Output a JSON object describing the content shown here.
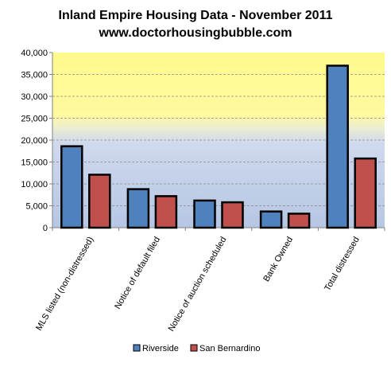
{
  "chart_data": {
    "type": "bar",
    "title": "Inland Empire Housing Data - November 2011",
    "subtitle": "www.doctorhousingbubble.com",
    "categories": [
      "MLS listed (non-distressed)",
      "Notice of default filed",
      "Notice of auction scheduled",
      "Bank Owned",
      "Total distressed"
    ],
    "series": [
      {
        "name": "Riverside",
        "color": "#4f81bd",
        "values": [
          18600,
          8800,
          6200,
          3700,
          37000
        ]
      },
      {
        "name": "San Bernardino",
        "color": "#c0504d",
        "values": [
          12100,
          7200,
          5800,
          3200,
          15800
        ]
      }
    ],
    "ylim": [
      0,
      40000
    ],
    "yticks": [
      "0",
      "5,000",
      "10,000",
      "15,000",
      "20,000",
      "25,000",
      "30,000",
      "35,000",
      "40,000"
    ],
    "grid": true,
    "legend_position": "bottom",
    "background": {
      "top_color": "#fffa8c",
      "bottom_color": "#b8c8e4"
    }
  }
}
